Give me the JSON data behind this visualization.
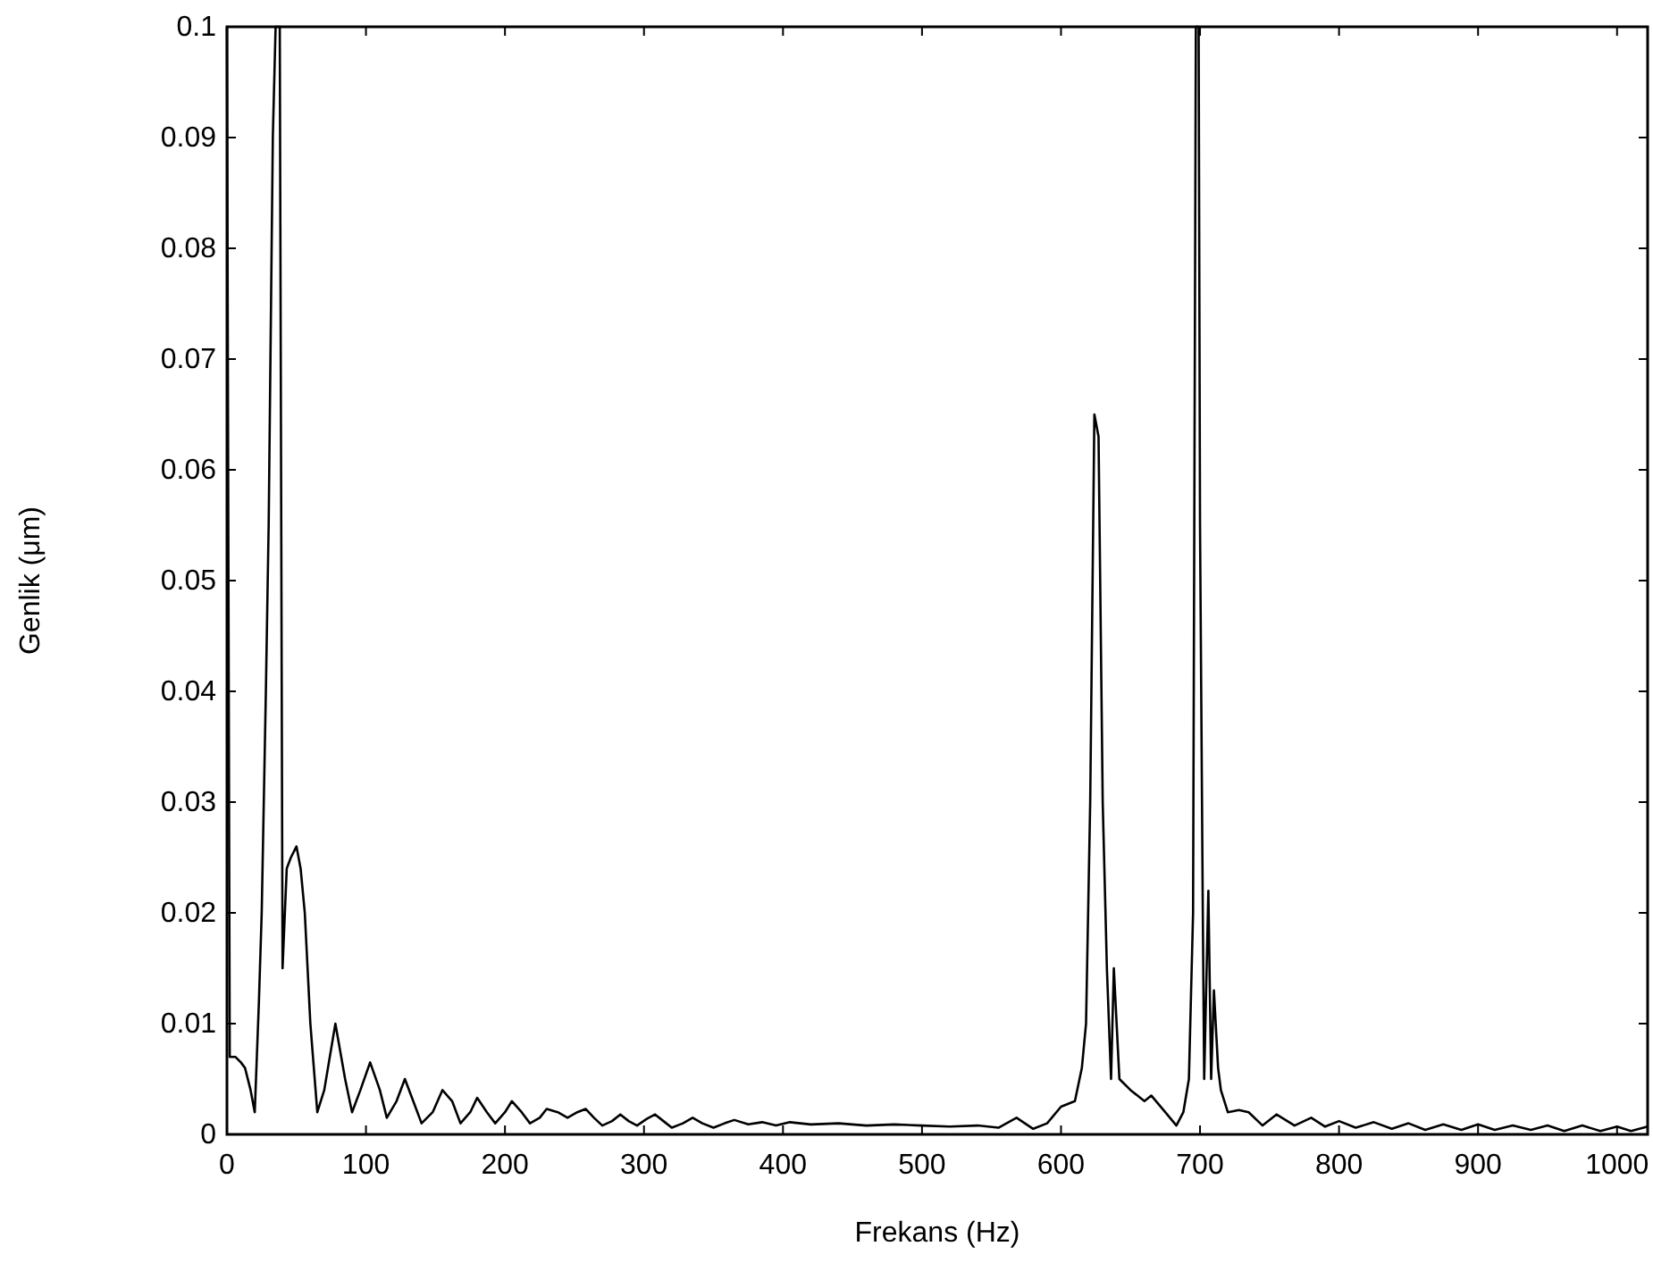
{
  "chart_data": {
    "type": "line",
    "xlabel": "Frekans (Hz)",
    "ylabel": "Genlik (μm)",
    "xlim": [
      0,
      1022
    ],
    "ylim": [
      0,
      0.1
    ],
    "xticks": [
      0,
      100,
      200,
      300,
      400,
      500,
      600,
      700,
      800,
      900,
      1000
    ],
    "yticks": [
      0,
      0.01,
      0.02,
      0.03,
      0.04,
      0.05,
      0.06,
      0.07,
      0.08,
      0.09,
      0.1
    ],
    "grid": false,
    "marker": "none",
    "line_style": "solid",
    "series": [
      {
        "color": "#000000",
        "x": [
          0,
          2,
          6,
          10,
          13,
          17,
          20,
          23,
          25,
          28,
          30,
          33,
          35,
          38,
          40,
          43,
          46,
          50,
          53,
          56,
          60,
          65,
          70,
          78,
          85,
          90,
          96,
          103,
          110,
          115,
          122,
          128,
          134,
          140,
          148,
          155,
          162,
          168,
          175,
          180,
          187,
          193,
          200,
          205,
          212,
          218,
          225,
          230,
          238,
          245,
          252,
          258,
          264,
          270,
          277,
          283,
          289,
          295,
          302,
          308,
          314,
          320,
          328,
          335,
          342,
          350,
          358,
          365,
          375,
          385,
          395,
          405,
          420,
          440,
          460,
          480,
          500,
          520,
          540,
          555,
          568,
          580,
          590,
          600,
          610,
          615,
          618,
          621,
          624,
          627,
          630,
          633,
          636,
          638,
          642,
          650,
          660,
          665,
          675,
          683,
          688,
          692,
          695,
          697,
          699,
          700,
          702,
          703,
          706,
          708,
          710,
          713,
          715,
          720,
          728,
          735,
          745,
          755,
          768,
          780,
          790,
          800,
          812,
          825,
          838,
          850,
          862,
          875,
          888,
          900,
          912,
          925,
          938,
          950,
          962,
          975,
          988,
          1000,
          1010,
          1022
        ],
        "values": [
          0.1,
          0.007,
          0.007,
          0.0065,
          0.006,
          0.004,
          0.002,
          0.012,
          0.02,
          0.04,
          0.055,
          0.09,
          0.1,
          0.1,
          0.015,
          0.024,
          0.025,
          0.026,
          0.024,
          0.02,
          0.01,
          0.002,
          0.004,
          0.01,
          0.005,
          0.002,
          0.004,
          0.0065,
          0.004,
          0.0015,
          0.003,
          0.005,
          0.003,
          0.001,
          0.002,
          0.004,
          0.003,
          0.001,
          0.002,
          0.0033,
          0.002,
          0.001,
          0.002,
          0.003,
          0.002,
          0.001,
          0.0015,
          0.0023,
          0.002,
          0.0015,
          0.002,
          0.0023,
          0.0015,
          0.0008,
          0.0012,
          0.0018,
          0.0012,
          0.0008,
          0.0014,
          0.0018,
          0.0012,
          0.0006,
          0.001,
          0.0015,
          0.001,
          0.0006,
          0.001,
          0.0013,
          0.0009,
          0.0011,
          0.0008,
          0.0011,
          0.0009,
          0.001,
          0.0008,
          0.0009,
          0.0008,
          0.0007,
          0.0008,
          0.0006,
          0.0015,
          0.0005,
          0.001,
          0.0025,
          0.003,
          0.006,
          0.01,
          0.03,
          0.065,
          0.063,
          0.03,
          0.015,
          0.005,
          0.015,
          0.005,
          0.004,
          0.003,
          0.0035,
          0.002,
          0.0008,
          0.002,
          0.005,
          0.02,
          0.1,
          0.1,
          0.055,
          0.02,
          0.005,
          0.022,
          0.005,
          0.013,
          0.006,
          0.004,
          0.002,
          0.0022,
          0.002,
          0.0008,
          0.0018,
          0.0008,
          0.0015,
          0.0007,
          0.0012,
          0.0006,
          0.0011,
          0.0005,
          0.001,
          0.0004,
          0.0009,
          0.0004,
          0.0009,
          0.0004,
          0.0008,
          0.0004,
          0.0008,
          0.0003,
          0.0008,
          0.0003,
          0.0007,
          0.0003,
          0.0007
        ]
      }
    ]
  }
}
